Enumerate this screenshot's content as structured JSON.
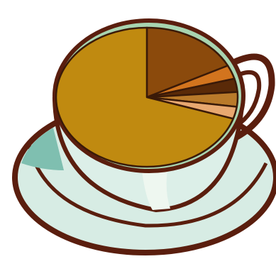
{
  "chart_data": {
    "type": "pie",
    "values": [
      17.5,
      3.2,
      3.1,
      3.4,
      2.8,
      70
    ],
    "colors": [
      "#8b4a0c",
      "#d2741e",
      "#5a2a08",
      "#b97a2a",
      "#e8a870",
      "#c08a10"
    ]
  }
}
